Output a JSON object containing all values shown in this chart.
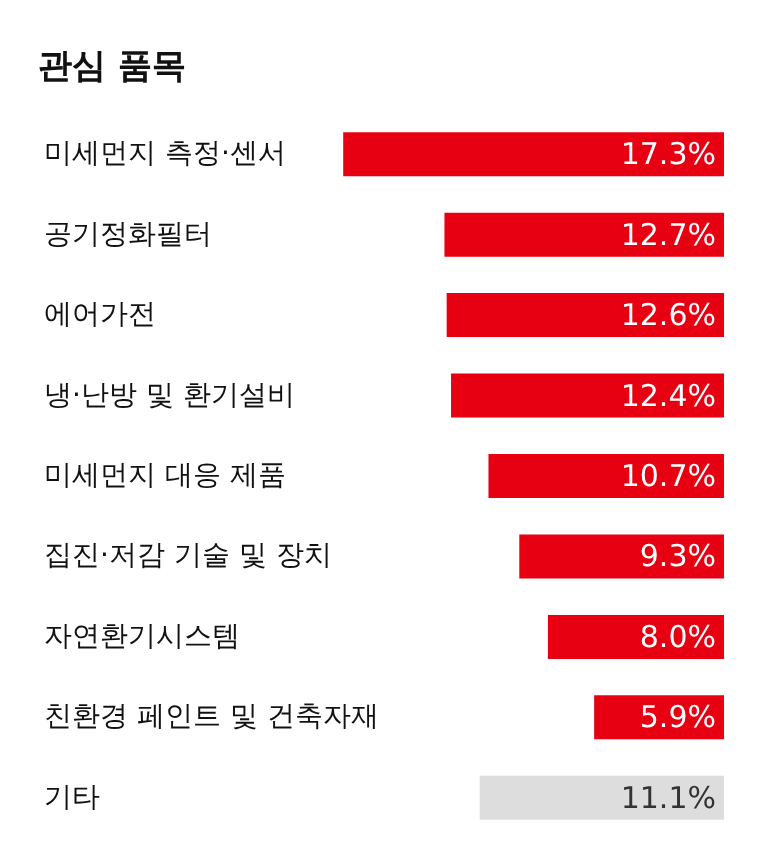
{
  "chart_data": {
    "type": "bar",
    "orientation": "horizontal",
    "title": "관심 품목",
    "value_labels": [
      "17.3%",
      "12.7%",
      "12.6%",
      "12.4%",
      "10.7%",
      "9.3%",
      "8.0%",
      "5.9%",
      "11.1%"
    ],
    "categories": [
      "미세먼지 측정·센서",
      "공기정화필터",
      "에어가전",
      "냉·난방 및 환기설비",
      "미세먼지 대응 제품",
      "집진·저감 기술 및 장치",
      "자연환기시스템",
      "친환경 페인트 및 건축자재",
      "기타"
    ],
    "values": [
      17.3,
      12.7,
      12.6,
      12.4,
      10.7,
      9.3,
      8.0,
      5.9,
      11.1
    ],
    "colors": [
      "#e60012",
      "#e60012",
      "#e60012",
      "#e60012",
      "#e60012",
      "#e60012",
      "#e60012",
      "#e60012",
      "#dddddd"
    ]
  }
}
